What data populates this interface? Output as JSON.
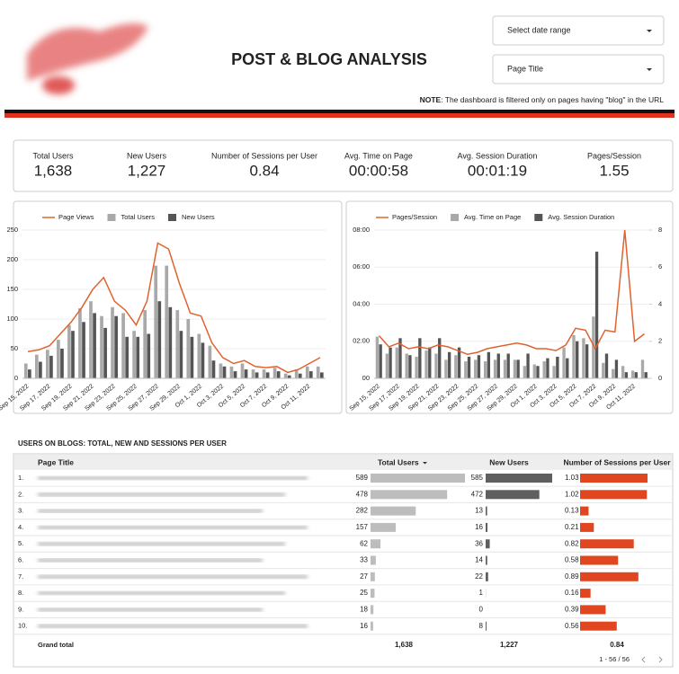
{
  "header": {
    "title": "POST & BLOG ANALYSIS",
    "date_range": "Select date range",
    "page_filter": "Page Title",
    "note_label": "NOTE",
    "note_text": ": The dashboard is filtered only on pages having \"blog\" in the URL"
  },
  "kpis": [
    {
      "label": "Total Users",
      "value": "1,638"
    },
    {
      "label": "New Users",
      "value": "1,227"
    },
    {
      "label": "Number of Sessions per User",
      "value": "0.84"
    },
    {
      "label": "Avg. Time on Page",
      "value": "00:00:58"
    },
    {
      "label": "Avg. Session Duration",
      "value": "00:01:19"
    },
    {
      "label": "Pages/Session",
      "value": "1.55"
    }
  ],
  "chart_data": [
    {
      "type": "combo",
      "categories": [
        "Sep 15, 2022",
        null,
        "Sep 17, 2022",
        null,
        "Sep 19, 2022",
        null,
        "Sep 21, 2022",
        null,
        "Sep 23, 2022",
        null,
        "Sep 25, 2022",
        null,
        "Sep 27, 2022",
        null,
        "Sep 29, 2022",
        null,
        "Oct 1, 2022",
        null,
        "Oct 3, 2022",
        null,
        "Oct 5, 2022",
        null,
        "Oct 7, 2022",
        null,
        "Oct 9, 2022",
        null,
        "Oct 11, 2022",
        null
      ],
      "series": [
        {
          "name": "Page Views",
          "kind": "line",
          "color": "#e0622f",
          "values": [
            45,
            48,
            55,
            75,
            95,
            120,
            150,
            170,
            130,
            115,
            90,
            130,
            228,
            218,
            160,
            110,
            105,
            60,
            35,
            25,
            30,
            20,
            18,
            20,
            10,
            15,
            25,
            35
          ]
        },
        {
          "name": "Total Users",
          "kind": "bar",
          "color": "#a9a9a9",
          "values": [
            25,
            40,
            48,
            65,
            90,
            118,
            130,
            105,
            120,
            110,
            80,
            115,
            190,
            190,
            115,
            100,
            75,
            55,
            25,
            20,
            25,
            15,
            15,
            18,
            8,
            15,
            20,
            20
          ]
        },
        {
          "name": "New Users",
          "kind": "bar",
          "color": "#555555",
          "values": [
            15,
            28,
            38,
            50,
            80,
            95,
            110,
            85,
            105,
            70,
            70,
            75,
            130,
            120,
            80,
            70,
            60,
            30,
            20,
            12,
            15,
            10,
            10,
            12,
            5,
            8,
            12,
            10
          ]
        }
      ],
      "ylim": [
        0,
        250
      ],
      "yticks": [
        0,
        50,
        100,
        150,
        200,
        250
      ],
      "grid": true
    },
    {
      "type": "combo",
      "categories": [
        "Sep 15, 2022",
        null,
        "Sep 17, 2022",
        null,
        "Sep 19, 2022",
        null,
        "Sep 21, 2022",
        null,
        "Sep 23, 2022",
        null,
        "Sep 25, 2022",
        null,
        "Sep 27, 2022",
        null,
        "Sep 29, 2022",
        null,
        "Oct 1, 2022",
        null,
        "Oct 3, 2022",
        null,
        "Oct 5, 2022",
        null,
        "Oct 7, 2022",
        null,
        "Oct 9, 2022",
        null,
        "Oct 11, 2022",
        null
      ],
      "series": [
        {
          "name": "Pages/Session",
          "kind": "line",
          "color": "#e0622f",
          "axis": "y2",
          "values": [
            2.3,
            1.7,
            1.9,
            1.6,
            1.7,
            1.6,
            1.8,
            1.7,
            1.5,
            1.3,
            1.4,
            1.6,
            1.7,
            1.8,
            1.9,
            1.8,
            1.6,
            1.6,
            1.5,
            1.8,
            2.7,
            2.6,
            1.6,
            2.6,
            2.5,
            8.0,
            2.0,
            2.4
          ]
        },
        {
          "name": "Avg. Time on Page",
          "kind": "bar",
          "color": "#a9a9a9",
          "values": [
            135,
            80,
            100,
            80,
            70,
            90,
            80,
            60,
            75,
            55,
            60,
            55,
            60,
            60,
            60,
            40,
            45,
            55,
            40,
            100,
            140,
            130,
            200,
            50,
            30,
            40,
            25,
            60
          ]
        },
        {
          "name": "Avg. Session Duration",
          "kind": "bar",
          "color": "#555555",
          "values": [
            110,
            100,
            130,
            75,
            130,
            100,
            130,
            85,
            100,
            70,
            75,
            85,
            80,
            80,
            60,
            80,
            40,
            65,
            70,
            65,
            120,
            110,
            410,
            80,
            60,
            20,
            20,
            20
          ]
        }
      ],
      "ylim": [
        0,
        480
      ],
      "yticks": [
        {
          "value": 0,
          "label": "00"
        },
        {
          "value": 120,
          "label": "02:00"
        },
        {
          "value": 240,
          "label": "04:00"
        },
        {
          "value": 360,
          "label": "06:00"
        },
        {
          "value": 480,
          "label": "08:00"
        }
      ],
      "y2lim": [
        0,
        8
      ],
      "y2ticks": [
        0,
        2,
        4,
        6,
        8
      ],
      "grid": true
    }
  ],
  "table": {
    "title": "USERS ON BLOGS: TOTAL, NEW AND SESSIONS PER USER",
    "columns": [
      "Page Title",
      "Total Users",
      "New Users",
      "Number of Sessions per User"
    ],
    "rows": [
      {
        "rank": "1.",
        "total_users": 589,
        "new_users": 585,
        "sessions_per_user": 1.03
      },
      {
        "rank": "2.",
        "total_users": 478,
        "new_users": 472,
        "sessions_per_user": 1.02
      },
      {
        "rank": "3.",
        "total_users": 282,
        "new_users": 13,
        "sessions_per_user": 0.13
      },
      {
        "rank": "4.",
        "total_users": 157,
        "new_users": 16,
        "sessions_per_user": 0.21
      },
      {
        "rank": "5.",
        "total_users": 62,
        "new_users": 36,
        "sessions_per_user": 0.82
      },
      {
        "rank": "6.",
        "total_users": 33,
        "new_users": 14,
        "sessions_per_user": 0.58
      },
      {
        "rank": "7.",
        "total_users": 27,
        "new_users": 22,
        "sessions_per_user": 0.89
      },
      {
        "rank": "8.",
        "total_users": 25,
        "new_users": 1,
        "sessions_per_user": 0.16
      },
      {
        "rank": "9.",
        "total_users": 18,
        "new_users": 0,
        "sessions_per_user": 0.39
      },
      {
        "rank": "10.",
        "total_users": 16,
        "new_users": 8,
        "sessions_per_user": 0.56
      }
    ],
    "grand_total": {
      "label": "Grand total",
      "total_users": "1,638",
      "new_users": "1,227",
      "sessions_per_user": "0.84"
    },
    "pagination": "1 - 56 / 56"
  }
}
